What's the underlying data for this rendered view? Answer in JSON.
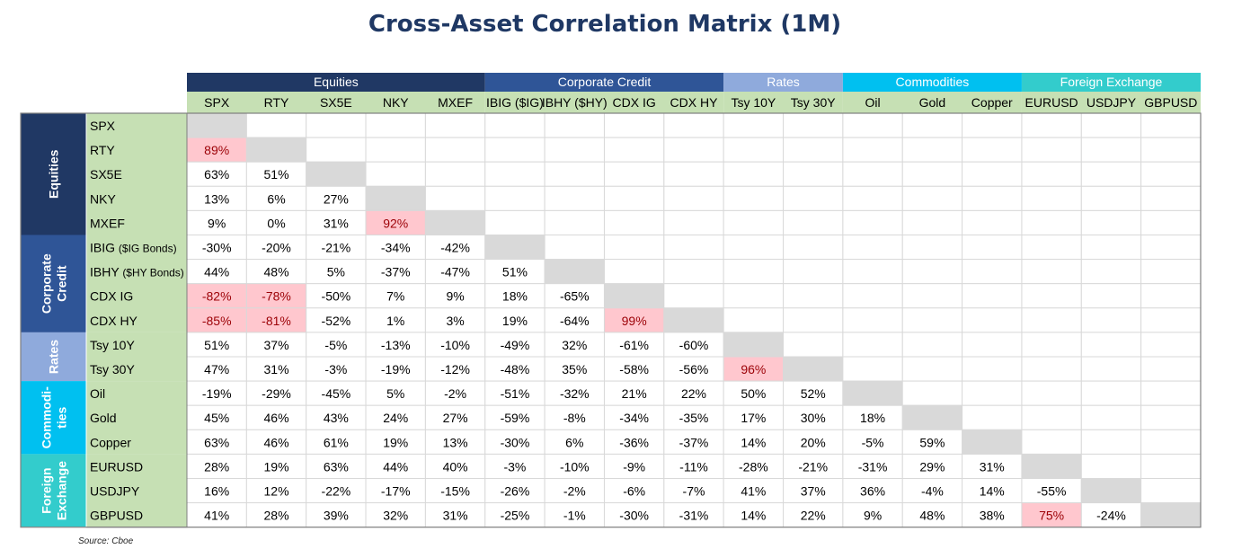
{
  "title": "Cross-Asset Correlation Matrix (1M)",
  "source": "Source: Cboe",
  "chart_data": {
    "type": "heatmap",
    "title": "Cross-Asset Correlation Matrix (1M)",
    "groups": [
      {
        "name": "Equities",
        "side_lines": [
          "Equities"
        ],
        "color": "#203864",
        "fill": "#c6e0b4",
        "members": [
          "SPX",
          "RTY",
          "SX5E",
          "NKY",
          "MXEF"
        ]
      },
      {
        "name": "Corporate Credit",
        "side_lines": [
          "Corporate",
          "Credit"
        ],
        "color": "#2f5597",
        "fill": "#c6e0b4",
        "members": [
          "IBIG ($IG)",
          "IBHY ($HY)",
          "CDX IG",
          "CDX HY"
        ]
      },
      {
        "name": "Rates",
        "side_lines": [
          "Rates"
        ],
        "color": "#8faadc",
        "fill": "#c6e0b4",
        "members": [
          "Tsy 10Y",
          "Tsy 30Y"
        ]
      },
      {
        "name": "Commodities",
        "side_lines": [
          "Commodi-",
          "ties"
        ],
        "color": "#00c0f0",
        "fill": "#c6e0b4",
        "members": [
          "Oil",
          "Gold",
          "Copper"
        ]
      },
      {
        "name": "Foreign Exchange",
        "side_lines": [
          "Foreign",
          "Exchange"
        ],
        "color": "#33cccc",
        "fill": "#c6e0b4",
        "members": [
          "EURUSD",
          "USDJPY",
          "GBPUSD"
        ]
      }
    ],
    "columns": [
      "SPX",
      "RTY",
      "SX5E",
      "NKY",
      "MXEF",
      "IBIG ($IG)",
      "IBHY ($HY)",
      "CDX IG",
      "CDX HY",
      "Tsy 10Y",
      "Tsy 30Y",
      "Oil",
      "Gold",
      "Copper",
      "EURUSD",
      "USDJPY",
      "GBPUSD"
    ],
    "rows": [
      {
        "main": "SPX",
        "sub": ""
      },
      {
        "main": "RTY",
        "sub": ""
      },
      {
        "main": "SX5E",
        "sub": ""
      },
      {
        "main": "NKY",
        "sub": ""
      },
      {
        "main": "MXEF",
        "sub": ""
      },
      {
        "main": "IBIG ",
        "sub": "($IG Bonds)"
      },
      {
        "main": "IBHY ",
        "sub": "($HY Bonds)"
      },
      {
        "main": "CDX IG",
        "sub": ""
      },
      {
        "main": "CDX HY",
        "sub": ""
      },
      {
        "main": "Tsy 10Y",
        "sub": ""
      },
      {
        "main": "Tsy 30Y",
        "sub": ""
      },
      {
        "main": "Oil",
        "sub": ""
      },
      {
        "main": "Gold",
        "sub": ""
      },
      {
        "main": "Copper",
        "sub": ""
      },
      {
        "main": "EURUSD",
        "sub": ""
      },
      {
        "main": "USDJPY",
        "sub": ""
      },
      {
        "main": "GBPUSD",
        "sub": ""
      }
    ],
    "values": [
      [],
      [
        89
      ],
      [
        63,
        51
      ],
      [
        13,
        6,
        27
      ],
      [
        9,
        0,
        31,
        92
      ],
      [
        -30,
        -20,
        -21,
        -34,
        -42
      ],
      [
        44,
        48,
        5,
        -37,
        -47,
        51
      ],
      [
        -82,
        -78,
        -50,
        7,
        9,
        18,
        -65
      ],
      [
        -85,
        -81,
        -52,
        1,
        3,
        19,
        -64,
        99
      ],
      [
        51,
        37,
        -5,
        -13,
        -10,
        -49,
        32,
        -61,
        -60
      ],
      [
        47,
        31,
        -3,
        -19,
        -12,
        -48,
        35,
        -58,
        -56,
        96
      ],
      [
        -19,
        -29,
        -45,
        5,
        -2,
        -51,
        -32,
        21,
        22,
        50,
        52
      ],
      [
        45,
        46,
        43,
        24,
        27,
        -59,
        -8,
        -34,
        -35,
        17,
        30,
        18
      ],
      [
        63,
        46,
        61,
        19,
        13,
        -30,
        6,
        -36,
        -37,
        14,
        20,
        -5,
        59
      ],
      [
        28,
        19,
        63,
        44,
        40,
        -3,
        -10,
        -9,
        -11,
        -28,
        -21,
        -31,
        29,
        31
      ],
      [
        16,
        12,
        -22,
        -17,
        -15,
        -26,
        -2,
        -6,
        -7,
        41,
        37,
        36,
        -4,
        14,
        -55
      ],
      [
        41,
        28,
        39,
        32,
        31,
        -25,
        -1,
        -30,
        -31,
        14,
        22,
        9,
        48,
        38,
        75,
        -24
      ]
    ],
    "unit": "%",
    "highlight_abs_threshold": 75,
    "colors": {
      "highlight_fill": "#ffc7ce",
      "highlight_text": "#9c0006",
      "diagonal_fill": "#d9d9d9",
      "grid_line": "#d9d9d9",
      "label_fill": "#c6e0b4",
      "title_color": "#1f3864"
    }
  }
}
